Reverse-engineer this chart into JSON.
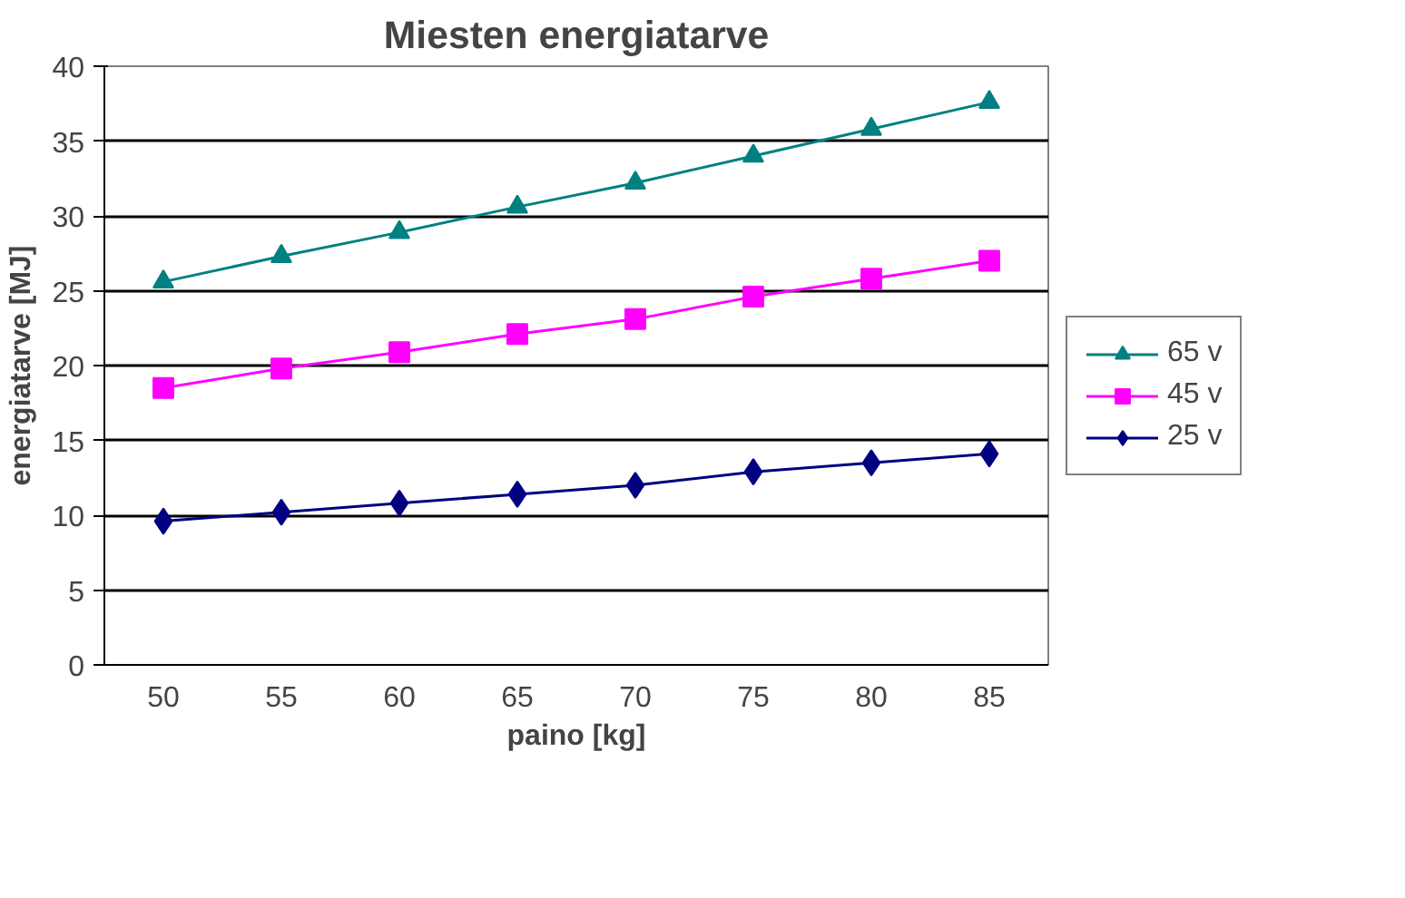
{
  "chart_data": {
    "type": "line",
    "title": "Miesten energiatarve",
    "xlabel": "paino [kg]",
    "ylabel": "energiatarve [MJ]",
    "categories": [
      "50",
      "55",
      "60",
      "65",
      "70",
      "75",
      "80",
      "85"
    ],
    "series": [
      {
        "name": "65 v",
        "color": "#008080",
        "marker": "triangle",
        "values": [
          25.6,
          27.3,
          28.9,
          30.6,
          32.2,
          34.0,
          35.8,
          37.6
        ]
      },
      {
        "name": "45 v",
        "color": "#ff00ff",
        "marker": "square",
        "values": [
          18.5,
          19.8,
          20.9,
          22.1,
          23.1,
          24.6,
          25.8,
          27.0
        ]
      },
      {
        "name": "25 v",
        "color": "#000080",
        "marker": "diamond",
        "values": [
          9.6,
          10.2,
          10.8,
          11.4,
          12.0,
          12.9,
          13.5,
          14.1
        ]
      }
    ],
    "ylim": [
      0,
      40
    ],
    "yticks": [
      0,
      5,
      10,
      15,
      20,
      25,
      30,
      35,
      40
    ],
    "grid": "y",
    "legend": "right"
  }
}
